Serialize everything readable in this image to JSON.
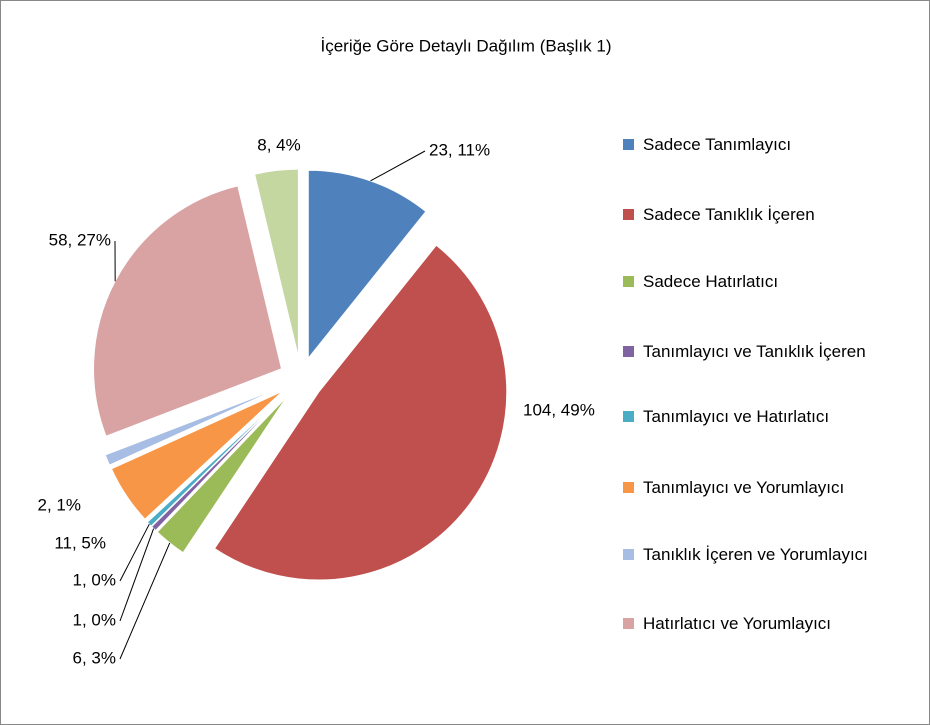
{
  "chart_data": {
    "type": "pie",
    "title": "İçeriğe Göre Detaylı Dağılım (Başlık 1)",
    "categories": [
      "Sadece Tanımlayıcı",
      "Sadece Tanıklık İçeren",
      "Sadece Hatırlatıcı",
      "Tanımlayıcı ve Tanıklık İçeren",
      "Tanımlayıcı ve Hatırlatıcı",
      "Tanımlayıcı ve Yorumlayıcı",
      "Tanıklık İçeren ve Yorumlayıcı",
      "Hatırlatıcı ve Yorumlayıcı",
      null
    ],
    "values": [
      23,
      104,
      6,
      1,
      1,
      11,
      2,
      58,
      8
    ],
    "value_labels": [
      "23, 11%",
      "104, 49%",
      "6, 3%",
      "1, 0%",
      "1, 0%",
      "11, 5%",
      "2, 1%",
      "58, 27%",
      "8, 4%"
    ],
    "colors": [
      "#4f81bd",
      "#c0504d",
      "#9bbb59",
      "#8064a2",
      "#4bacc6",
      "#f79646",
      "#a7bde3",
      "#d9a3a3",
      "#c4d7a0"
    ],
    "legend": "right"
  }
}
